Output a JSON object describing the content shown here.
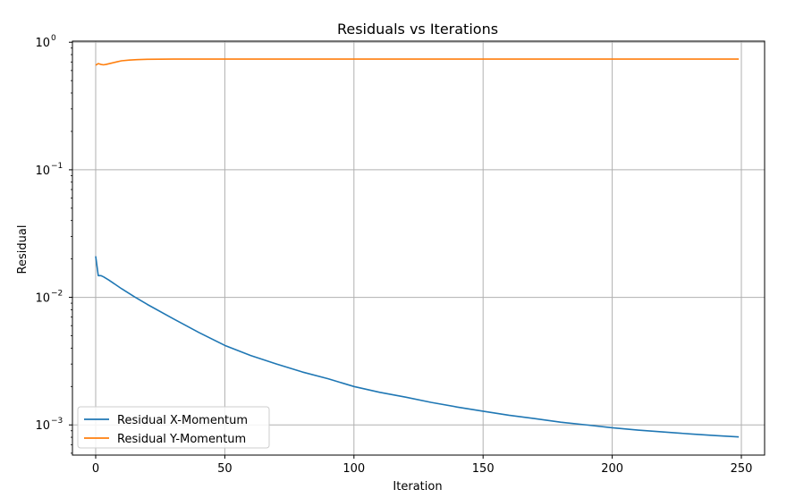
{
  "chart_data": {
    "type": "line",
    "title": "Residuals vs Iterations",
    "xlabel": "Iteration",
    "ylabel": "Residual",
    "yscale": "log",
    "xlim": [
      -9,
      259
    ],
    "ylim": [
      0.00058,
      1.02
    ],
    "grid": true,
    "legend_position": "bottom-left",
    "x_ticks": [
      {
        "value": 0,
        "label": "0"
      },
      {
        "value": 50,
        "label": "50"
      },
      {
        "value": 100,
        "label": "100"
      },
      {
        "value": 150,
        "label": "150"
      },
      {
        "value": 200,
        "label": "200"
      },
      {
        "value": 250,
        "label": "250"
      }
    ],
    "y_ticks": [
      {
        "value": 0.001,
        "base": "10",
        "exp": "−3"
      },
      {
        "value": 0.01,
        "base": "10",
        "exp": "−2"
      },
      {
        "value": 0.1,
        "base": "10",
        "exp": "−1"
      },
      {
        "value": 1,
        "base": "10",
        "exp": "0"
      }
    ],
    "series": [
      {
        "name": "Residual X-Momentum",
        "color": "#1f77b4",
        "x": [
          0,
          1,
          2,
          3,
          5,
          10,
          15,
          20,
          30,
          40,
          50,
          60,
          70,
          80,
          90,
          100,
          110,
          120,
          130,
          140,
          150,
          160,
          170,
          180,
          190,
          200,
          210,
          220,
          230,
          240,
          249
        ],
        "y": [
          0.021,
          0.0148,
          0.0148,
          0.0145,
          0.0137,
          0.0117,
          0.0101,
          0.0088,
          0.0068,
          0.0053,
          0.0042,
          0.0035,
          0.003,
          0.0026,
          0.0023,
          0.002,
          0.0018,
          0.00165,
          0.0015,
          0.00138,
          0.00128,
          0.00119,
          0.00112,
          0.00105,
          0.001,
          0.00095,
          0.00091,
          0.00088,
          0.00085,
          0.000825,
          0.000805
        ]
      },
      {
        "name": "Residual Y-Momentum",
        "color": "#ff7f0e",
        "x": [
          0,
          1,
          2,
          3,
          4,
          6,
          8,
          10,
          13,
          16,
          20,
          25,
          30,
          40,
          50,
          100,
          150,
          200,
          249
        ],
        "y": [
          0.66,
          0.68,
          0.67,
          0.665,
          0.67,
          0.685,
          0.7,
          0.715,
          0.725,
          0.73,
          0.735,
          0.737,
          0.738,
          0.738,
          0.738,
          0.738,
          0.738,
          0.738,
          0.738
        ]
      }
    ]
  }
}
